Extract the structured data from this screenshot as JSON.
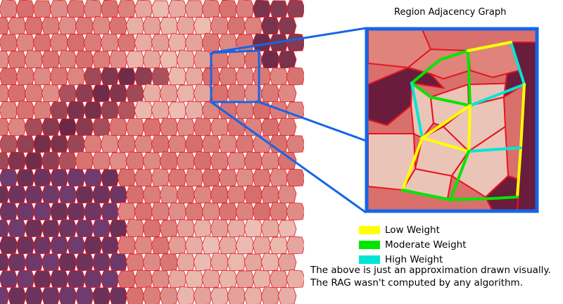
{
  "title": "Region Adjacency Graph",
  "colors": {
    "zoom_frame": "#1565e6",
    "region_border": "#e8141e",
    "light_region": "#ebc4b8",
    "mid_region": "#d9706c",
    "dark_region": "#6a1c3c",
    "weight_low": "#ffff00",
    "weight_moderate": "#00e600",
    "weight_high": "#00e6d2"
  },
  "legend": [
    {
      "label": "Low Weight",
      "color": "#ffff00"
    },
    {
      "label": "Moderate Weight",
      "color": "#00e600"
    },
    {
      "label": "High Weight",
      "color": "#00e6d2"
    }
  ],
  "note": "The above is just an approximation drawn visually. The RAG wasn't computed by any algorithm."
}
